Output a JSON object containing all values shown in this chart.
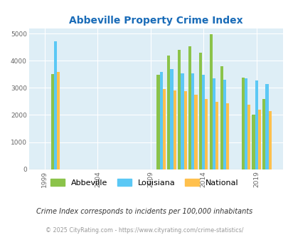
{
  "title": "Abbeville Property Crime Index",
  "subtitle": "Crime Index corresponds to incidents per 100,000 inhabitants",
  "footer": "© 2025 CityRating.com - https://www.cityrating.com/crime-statistics/",
  "years": [
    2000,
    2010,
    2011,
    2012,
    2013,
    2014,
    2015,
    2016,
    2018,
    2019,
    2020
  ],
  "abbeville": [
    3520,
    3480,
    4190,
    4390,
    4520,
    4300,
    4980,
    3800,
    3370,
    2000,
    2600
  ],
  "louisiana": [
    4720,
    3600,
    3690,
    3540,
    3540,
    3470,
    3340,
    3300,
    3340,
    3270,
    3150
  ],
  "national": [
    3590,
    2950,
    2900,
    2870,
    2760,
    2600,
    2490,
    2440,
    2370,
    2200,
    2130
  ],
  "color_abbeville": "#8bc34a",
  "color_louisiana": "#5bc8f5",
  "color_national": "#ffc04d",
  "bg_color": "#deeef6",
  "yticks": [
    0,
    1000,
    2000,
    3000,
    4000,
    5000
  ],
  "xtick_labels": [
    "1999",
    "2004",
    "2009",
    "2014",
    "2019"
  ],
  "xtick_year_positions": [
    1999,
    2004,
    2009,
    2014,
    2019
  ],
  "title_color": "#1a6cb8",
  "subtitle_color": "#333333",
  "footer_color": "#999999"
}
